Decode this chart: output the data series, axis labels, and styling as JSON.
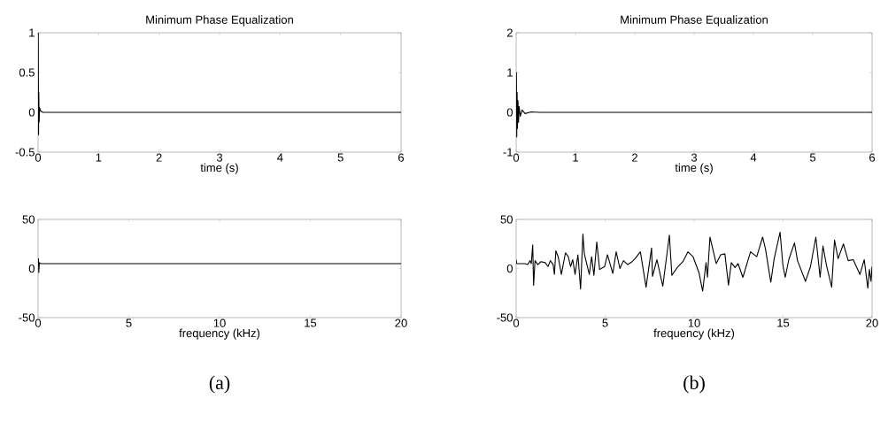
{
  "chart_data": [
    {
      "type": "line",
      "title": "Minimum Phase Equalization",
      "xlabel": "time (s)",
      "color": "#000000",
      "marker": "none",
      "x": [
        0,
        0.003,
        0.008,
        0.012,
        0.018,
        0.025,
        0.04,
        0.08,
        6
      ],
      "values": [
        0,
        1,
        -0.28,
        0.25,
        -0.12,
        0.06,
        0.02,
        0,
        0
      ],
      "xlim": [
        0,
        6
      ],
      "ylim": [
        -0.5,
        1
      ],
      "xticks": [
        0,
        1,
        2,
        3,
        4,
        5,
        6
      ],
      "yticks": [
        -0.5,
        0,
        0.5,
        1
      ]
    },
    {
      "type": "line",
      "title": "Minimum Phase Equalization",
      "xlabel": "time (s)",
      "color": "#000000",
      "marker": "none",
      "x": [
        0,
        0.004,
        0.01,
        0.016,
        0.022,
        0.03,
        0.04,
        0.05,
        0.07,
        0.1,
        0.15,
        0.25,
        0.4,
        6
      ],
      "values": [
        0,
        1,
        -0.62,
        0.5,
        -0.4,
        0.3,
        -0.25,
        0.15,
        -0.1,
        0.06,
        -0.03,
        0.01,
        0,
        0
      ],
      "xlim": [
        0,
        6
      ],
      "ylim": [
        -1,
        2
      ],
      "xticks": [
        0,
        1,
        2,
        3,
        4,
        5,
        6
      ],
      "yticks": [
        -1,
        0,
        1,
        2
      ]
    },
    {
      "type": "line",
      "xlabel": "frequency (kHz)",
      "color": "#000000",
      "marker": "none",
      "annotations": [
        "(a)"
      ],
      "x": [
        0,
        0.02,
        0.04,
        0.07,
        0.15,
        20
      ],
      "values": [
        5,
        10,
        -4,
        6,
        5,
        5
      ],
      "xlim": [
        0,
        20
      ],
      "ylim": [
        -50,
        50
      ],
      "xticks": [
        0,
        5,
        10,
        15,
        20
      ],
      "yticks": [
        -50,
        0,
        50
      ]
    },
    {
      "type": "line",
      "xlabel": "frequency (kHz)",
      "color": "#000000",
      "marker": "none",
      "annotations": [
        "(b)"
      ],
      "x": [
        0,
        0.03,
        0.49,
        0.65,
        0.78,
        0.85,
        0.93,
        0.98,
        1.06,
        1.22,
        1.39,
        1.63,
        1.79,
        1.92,
        2.08,
        2.15,
        2.23,
        2.36,
        2.54,
        2.77,
        2.93,
        3.06,
        3.18,
        3.31,
        3.47,
        3.62,
        3.75,
        3.83,
        4.11,
        4.24,
        4.37,
        4.53,
        4.69,
        4.97,
        5.13,
        5.43,
        5.62,
        5.83,
        6.03,
        6.27,
        6.52,
        6.68,
        6.98,
        7.3,
        7.61,
        7.66,
        7.91,
        8.24,
        8.61,
        8.75,
        9.05,
        9.37,
        9.65,
        9.94,
        10.27,
        10.48,
        10.67,
        10.75,
        10.89,
        11.24,
        11.49,
        11.73,
        11.93,
        12.09,
        12.3,
        12.47,
        12.74,
        13.17,
        13.52,
        13.85,
        14.01,
        14.31,
        14.5,
        14.83,
        14.99,
        15.12,
        15.32,
        15.64,
        15.81,
        16.26,
        16.54,
        16.84,
        17.08,
        17.24,
        17.44,
        17.73,
        17.89,
        18.09,
        18.39,
        18.66,
        18.94,
        19.32,
        19.56,
        19.76,
        19.85,
        19.94,
        20
      ],
      "values": [
        9,
        5,
        5,
        4,
        8,
        5,
        24,
        -17,
        8,
        4,
        7,
        6,
        2,
        8,
        4,
        -6,
        18,
        12,
        -6,
        16,
        12,
        2,
        9,
        -6,
        14,
        -21,
        35,
        15,
        -6,
        12,
        -7,
        27,
        -1,
        2,
        14,
        -5,
        17,
        0,
        8,
        4,
        7,
        10,
        17,
        -19,
        21,
        -8,
        9,
        -18,
        34,
        -7,
        1,
        7,
        17,
        12,
        -4,
        -23,
        6,
        -9,
        32,
        5,
        14,
        15,
        -17,
        6,
        1,
        5,
        -9,
        17,
        12,
        32,
        20,
        -14,
        10,
        37,
        3,
        -9,
        9,
        26,
        8,
        -13,
        2,
        32,
        -9,
        23,
        3,
        -19,
        29,
        10,
        25,
        8,
        9,
        -6,
        9,
        -20,
        -1,
        -13,
        2
      ],
      "xlim": [
        0,
        20
      ],
      "ylim": [
        -50,
        50
      ],
      "xticks": [
        0,
        5,
        10,
        15,
        20
      ],
      "yticks": [
        -50,
        0,
        50
      ]
    }
  ]
}
